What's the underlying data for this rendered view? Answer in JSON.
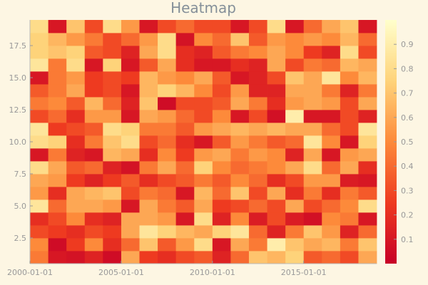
{
  "chart_data": {
    "type": "heatmap",
    "title": "Heatmap",
    "xlabel": "",
    "ylabel": "",
    "x_tick_labels": [
      "2000-01-01",
      "2005-01-01",
      "2010-01-01",
      "2015-01-01"
    ],
    "x_tick_dates": [
      "2000-01-01",
      "2005-01-01",
      "2010-01-01",
      "2015-01-01"
    ],
    "x_range": [
      "2000-01-01",
      "2019-01-01"
    ],
    "y_range": [
      0.5,
      19.5
    ],
    "y_ticks": [
      2.5,
      5.0,
      7.5,
      10.0,
      12.5,
      15.0,
      17.5
    ],
    "y_tick_labels": [
      "2.5",
      "5.0",
      "7.5",
      "10.0",
      "12.5",
      "15.0",
      "17.5"
    ],
    "colorbar": {
      "min": 0.0,
      "max": 1.0,
      "ticks": [
        0.1,
        0.2,
        0.3,
        0.4,
        0.5,
        0.6,
        0.7,
        0.8,
        0.9
      ],
      "tick_labels": [
        "0.1",
        "0.2",
        "0.3",
        "0.4",
        "0.5",
        "0.6",
        "0.7",
        "0.8",
        "0.9"
      ],
      "colormap": [
        "#c70027",
        "#ee3a20",
        "#fd8a3a",
        "#fed37a",
        "#ffffcc"
      ]
    },
    "grid": false,
    "legend": "colorbar-right",
    "x_dates": [
      "2000-01-01",
      "2001-01-01",
      "2002-01-01",
      "2003-01-01",
      "2004-01-01",
      "2005-01-01",
      "2006-01-01",
      "2007-01-01",
      "2008-01-01",
      "2009-01-01",
      "2010-01-01",
      "2011-01-01",
      "2012-01-01",
      "2013-01-01",
      "2014-01-01",
      "2015-01-01",
      "2016-01-01",
      "2017-01-01",
      "2018-01-01"
    ],
    "y": [
      1,
      2,
      3,
      4,
      5,
      6,
      7,
      8,
      9,
      10,
      11,
      12,
      13,
      14,
      15,
      16,
      17,
      18,
      19
    ],
    "z": [
      [
        0.45,
        0.1,
        0.08,
        0.15,
        0.05,
        0.6,
        0.25,
        0.2,
        0.3,
        0.35,
        0.15,
        0.4,
        0.7,
        0.65,
        0.75,
        0.35,
        0.4,
        0.3,
        0.6
      ],
      [
        0.5,
        0.05,
        0.25,
        0.5,
        0.2,
        0.4,
        0.7,
        0.35,
        0.55,
        0.8,
        0.1,
        0.6,
        0.45,
        0.9,
        0.7,
        0.6,
        0.65,
        0.45,
        0.7
      ],
      [
        0.3,
        0.25,
        0.2,
        0.3,
        0.25,
        0.6,
        0.85,
        0.75,
        0.65,
        0.6,
        0.75,
        0.85,
        0.4,
        0.15,
        0.45,
        0.7,
        0.55,
        0.15,
        0.4
      ],
      [
        0.2,
        0.3,
        0.5,
        0.2,
        0.15,
        0.6,
        0.6,
        0.55,
        0.1,
        0.8,
        0.15,
        0.5,
        0.12,
        0.3,
        0.12,
        0.07,
        0.5,
        0.45,
        0.1
      ],
      [
        0.85,
        0.4,
        0.6,
        0.6,
        0.55,
        0.1,
        0.6,
        0.45,
        0.35,
        0.6,
        0.25,
        0.3,
        0.4,
        0.3,
        0.6,
        0.3,
        0.4,
        0.5,
        0.8
      ],
      [
        0.55,
        0.2,
        0.6,
        0.65,
        0.7,
        0.3,
        0.45,
        0.4,
        0.1,
        0.65,
        0.4,
        0.7,
        0.3,
        0.6,
        0.2,
        0.45,
        0.2,
        0.45,
        0.35
      ],
      [
        0.6,
        0.55,
        0.25,
        0.15,
        0.25,
        0.35,
        0.2,
        0.3,
        0.35,
        0.45,
        0.35,
        0.5,
        0.4,
        0.2,
        0.3,
        0.55,
        0.55,
        0.12,
        0.1
      ],
      [
        0.8,
        0.6,
        0.35,
        0.4,
        0.15,
        0.08,
        0.45,
        0.6,
        0.4,
        0.75,
        0.5,
        0.4,
        0.45,
        0.5,
        0.6,
        0.8,
        0.4,
        0.6,
        0.2
      ],
      [
        0.1,
        0.45,
        0.15,
        0.1,
        0.65,
        0.6,
        0.2,
        0.5,
        0.25,
        0.55,
        0.6,
        0.45,
        0.55,
        0.5,
        0.15,
        0.6,
        0.1,
        0.55,
        0.6
      ],
      [
        0.8,
        0.75,
        0.2,
        0.45,
        0.7,
        0.8,
        0.3,
        0.4,
        0.2,
        0.1,
        0.35,
        0.55,
        0.45,
        0.35,
        0.4,
        0.85,
        0.5,
        0.1,
        0.75
      ],
      [
        0.85,
        0.25,
        0.3,
        0.35,
        0.8,
        0.75,
        0.45,
        0.45,
        0.35,
        0.55,
        0.6,
        0.65,
        0.6,
        0.65,
        0.6,
        0.6,
        0.4,
        0.3,
        0.85
      ],
      [
        0.3,
        0.4,
        0.2,
        0.55,
        0.55,
        0.1,
        0.6,
        0.55,
        0.4,
        0.3,
        0.5,
        0.1,
        0.3,
        0.07,
        0.9,
        0.1,
        0.1,
        0.3,
        0.15
      ],
      [
        0.45,
        0.5,
        0.35,
        0.65,
        0.4,
        0.15,
        0.7,
        0.05,
        0.3,
        0.3,
        0.35,
        0.6,
        0.45,
        0.2,
        0.55,
        0.6,
        0.55,
        0.3,
        0.6
      ],
      [
        0.35,
        0.45,
        0.6,
        0.25,
        0.3,
        0.1,
        0.65,
        0.75,
        0.65,
        0.5,
        0.3,
        0.55,
        0.15,
        0.15,
        0.6,
        0.6,
        0.45,
        0.15,
        0.45
      ],
      [
        0.1,
        0.45,
        0.55,
        0.25,
        0.3,
        0.25,
        0.65,
        0.55,
        0.5,
        0.6,
        0.35,
        0.1,
        0.15,
        0.3,
        0.7,
        0.6,
        0.85,
        0.5,
        0.65
      ],
      [
        0.85,
        0.45,
        0.8,
        0.1,
        0.75,
        0.1,
        0.35,
        0.6,
        0.2,
        0.1,
        0.1,
        0.2,
        0.15,
        0.6,
        0.3,
        0.45,
        0.4,
        0.65,
        0.6
      ],
      [
        0.75,
        0.7,
        0.75,
        0.35,
        0.3,
        0.15,
        0.6,
        0.8,
        0.2,
        0.15,
        0.35,
        0.45,
        0.5,
        0.6,
        0.5,
        0.25,
        0.15,
        0.8,
        0.3
      ],
      [
        0.75,
        0.65,
        0.55,
        0.45,
        0.3,
        0.4,
        0.55,
        0.8,
        0.08,
        0.5,
        0.4,
        0.7,
        0.35,
        0.55,
        0.5,
        0.55,
        0.5,
        0.65,
        0.4
      ],
      [
        0.8,
        0.1,
        0.7,
        0.3,
        0.8,
        0.55,
        0.1,
        0.3,
        0.4,
        0.3,
        0.3,
        0.1,
        0.3,
        0.8,
        0.1,
        0.4,
        0.6,
        0.7,
        0.1
      ]
    ]
  }
}
